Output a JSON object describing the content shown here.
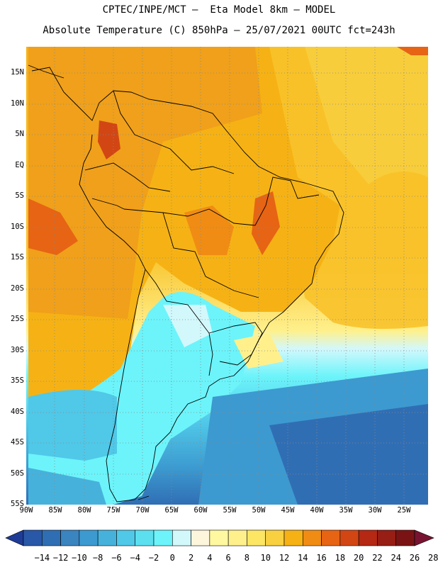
{
  "header": {
    "line1": "CPTEC/INPE/MCT –  Eta Model 8km – MODEL",
    "line2": "Absolute Temperature (C) 850hPa – 25/07/2021 00UTC fct=243h"
  },
  "map": {
    "lat_labels": [
      "15N",
      "10N",
      "5N",
      "EQ",
      "5S",
      "10S",
      "15S",
      "20S",
      "25S",
      "30S",
      "35S",
      "40S",
      "45S",
      "50S",
      "55S"
    ],
    "lon_labels": [
      "90W",
      "85W",
      "80W",
      "75W",
      "70W",
      "65W",
      "60W",
      "55W",
      "50W",
      "45W",
      "40W",
      "35W",
      "30W",
      "25W"
    ],
    "lat_range": [
      -55,
      19
    ],
    "lon_range": [
      -90,
      -20
    ],
    "grid": "dotted",
    "variable": "Absolute Temperature (C) 850hPa"
  },
  "colorbar": {
    "labels": [
      "-14",
      "-12",
      "-10",
      "-8",
      "-6",
      "-4",
      "-2",
      "0",
      "2",
      "4",
      "6",
      "8",
      "10",
      "12",
      "14",
      "16",
      "18",
      "20",
      "22",
      "24",
      "26",
      "28"
    ],
    "colors": [
      "#1e3c96",
      "#2a58a8",
      "#306eb4",
      "#3a84c0",
      "#3c9ad0",
      "#46b2dc",
      "#50c8e8",
      "#5ce0f0",
      "#6cf4fa",
      "#d2f8fc",
      "#fef6dc",
      "#fff8a0",
      "#fff08c",
      "#fce664",
      "#f8d040",
      "#f6b214",
      "#f08c14",
      "#e66414",
      "#d24614",
      "#b42814",
      "#961e14",
      "#7a1414",
      "#781432"
    ]
  }
}
